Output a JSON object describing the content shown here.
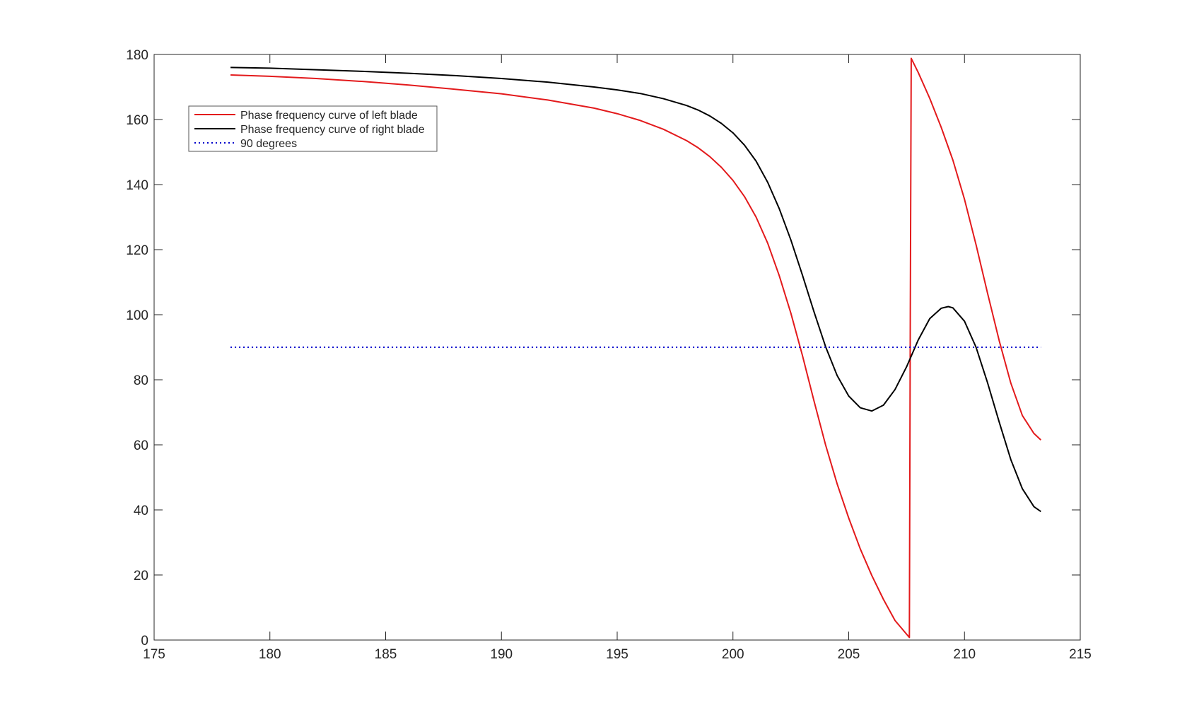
{
  "chart_data": {
    "type": "line",
    "title": "",
    "xlabel": "",
    "ylabel": "",
    "xlim": [
      175,
      215
    ],
    "ylim": [
      0,
      180
    ],
    "xticks": [
      175,
      180,
      185,
      190,
      195,
      200,
      205,
      210,
      215
    ],
    "yticks": [
      0,
      20,
      40,
      60,
      80,
      100,
      120,
      140,
      160,
      180
    ],
    "grid": false,
    "legend_position": "top-left",
    "series": [
      {
        "name": "Phase frequency curve of left blade",
        "color": "#e31a1c",
        "style": "solid",
        "x": [
          178.3,
          180,
          182,
          184,
          186,
          188,
          190,
          192,
          194,
          195,
          196,
          197,
          198,
          198.5,
          199,
          199.5,
          200,
          200.5,
          201,
          201.5,
          202,
          202.5,
          203,
          203.5,
          204,
          204.5,
          205,
          205.5,
          206,
          206.5,
          207,
          207.5,
          207.62,
          207.66,
          207.7,
          208,
          208.5,
          209,
          209.5,
          210,
          210.5,
          211,
          211.5,
          212,
          212.5,
          213,
          213.3
        ],
        "y": [
          173.7,
          173.3,
          172.6,
          171.7,
          170.6,
          169.3,
          167.9,
          166,
          163.5,
          161.8,
          159.7,
          157,
          153.5,
          151.3,
          148.6,
          145.3,
          141.3,
          136.3,
          130,
          122,
          112,
          100.5,
          87.5,
          73.5,
          60,
          48,
          37.5,
          28,
          19.8,
          12.5,
          6,
          1.8,
          0.8,
          100,
          178.8,
          174.5,
          166.5,
          157.5,
          147.5,
          135.5,
          121.5,
          106.5,
          92,
          79,
          69,
          63.5,
          61.5
        ]
      },
      {
        "name": "Phase frequency curve of right blade",
        "color": "#000000",
        "style": "solid",
        "x": [
          178.3,
          180,
          182,
          184,
          186,
          188,
          190,
          192,
          194,
          195,
          196,
          197,
          198,
          198.5,
          199,
          199.5,
          200,
          200.5,
          201,
          201.5,
          202,
          202.5,
          203,
          203.5,
          204,
          204.5,
          205,
          205.5,
          206,
          206.5,
          207,
          207.5,
          208,
          208.5,
          209,
          209.3,
          209.5,
          210,
          210.5,
          211,
          211.5,
          212,
          212.5,
          213,
          213.3
        ],
        "y": [
          176,
          175.8,
          175.3,
          174.8,
          174.2,
          173.5,
          172.6,
          171.5,
          170,
          169.1,
          168,
          166.4,
          164.3,
          162.9,
          161.1,
          158.8,
          155.9,
          152.1,
          147.2,
          140.7,
          132.6,
          123,
          112.2,
          100.9,
          90.2,
          81.3,
          75,
          71.4,
          70.4,
          72.2,
          77,
          84,
          92.2,
          98.8,
          102,
          102.5,
          102.1,
          98,
          90,
          79,
          67,
          55.5,
          46.5,
          41,
          39.5
        ]
      },
      {
        "name": "90 degrees",
        "color": "#0000cc",
        "style": "dotted",
        "x": [
          178.3,
          213.3
        ],
        "y": [
          90,
          90
        ]
      }
    ]
  }
}
